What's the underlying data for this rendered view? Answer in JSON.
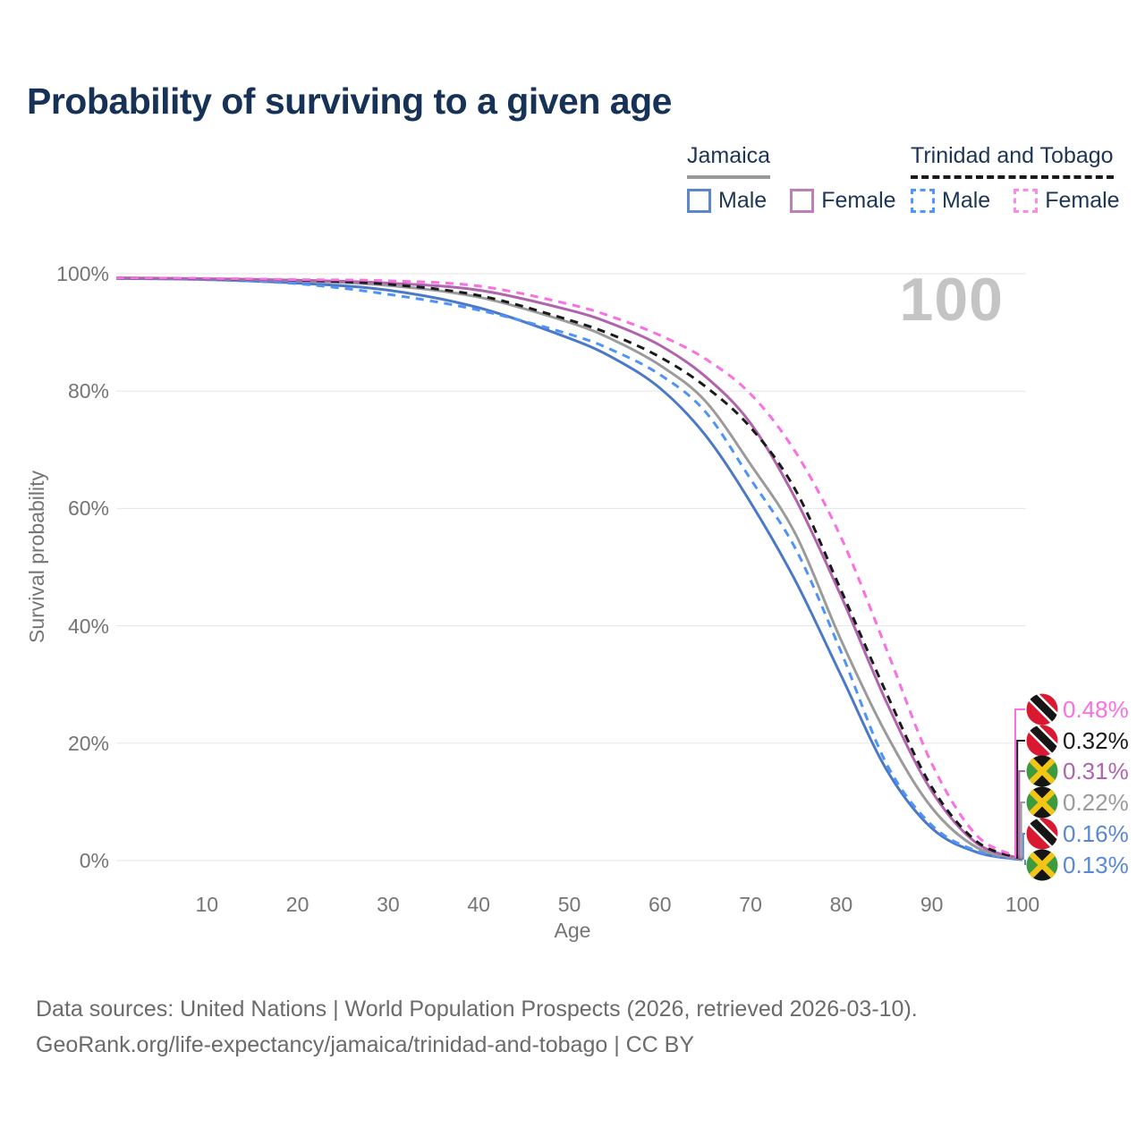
{
  "title": "Probability of surviving to a given age",
  "watermark": "100",
  "legend": {
    "groups": [
      {
        "name": "Jamaica",
        "underline_style": "solid",
        "underline_color": "#999999",
        "items": [
          {
            "label": "Male",
            "swatch_color": "#5b86c9",
            "dashed": false
          },
          {
            "label": "Female",
            "swatch_color": "#bd7fba",
            "dashed": false
          }
        ]
      },
      {
        "name": "Trinidad and Tobago",
        "underline_style": "dashed",
        "underline_color": "#1a1a1a",
        "items": [
          {
            "label": "Male",
            "swatch_color": "#4e96fc",
            "dashed": true
          },
          {
            "label": "Female",
            "swatch_color": "#fb8be8",
            "dashed": true
          }
        ]
      }
    ]
  },
  "chart_data": {
    "type": "line",
    "title": "Probability of surviving to a given age",
    "xlabel": "Age",
    "ylabel": "Survival probability",
    "xlim": [
      0,
      100
    ],
    "ylim": [
      0,
      100
    ],
    "x_ticks": [
      10,
      20,
      30,
      40,
      50,
      60,
      70,
      80,
      90,
      100
    ],
    "y_ticks": [
      "0%",
      "20%",
      "40%",
      "60%",
      "80%",
      "100%"
    ],
    "grid": "horizontal",
    "x": [
      0,
      10,
      20,
      30,
      40,
      50,
      55,
      60,
      65,
      70,
      75,
      80,
      85,
      90,
      95,
      100
    ],
    "series": [
      {
        "name": "Trinidad and Tobago — Female",
        "country": "Trinidad and Tobago",
        "sex": "Female",
        "color": "#fa6fe2",
        "label_color": "#fa6fe2",
        "dashed": true,
        "flag": "tt",
        "end_label": "0.48%",
        "values": [
          99.3,
          99.2,
          99.0,
          98.8,
          97.9,
          94.8,
          92.5,
          89.5,
          85.5,
          79.5,
          69.5,
          55.0,
          36.0,
          16.5,
          4.2,
          0.48
        ]
      },
      {
        "name": "Trinidad and Tobago — Both sexes",
        "country": "Trinidad and Tobago",
        "sex": "Both",
        "color": "#1a1a1a",
        "label_color": "#1a1a1a",
        "dashed": true,
        "flag": "tt",
        "end_label": "0.32%",
        "values": [
          99.3,
          99.15,
          98.9,
          98.2,
          96.3,
          92.1,
          89.4,
          85.8,
          80.8,
          73.8,
          63.0,
          46.0,
          28.5,
          12.5,
          3.2,
          0.32
        ]
      },
      {
        "name": "Jamaica — Female",
        "country": "Jamaica",
        "sex": "Female",
        "color": "#af64ad",
        "label_color": "#af64ad",
        "dashed": false,
        "flag": "jm",
        "end_label": "0.31%",
        "values": [
          99.3,
          99.15,
          98.9,
          98.4,
          97.2,
          93.8,
          91.3,
          87.8,
          82.5,
          74.5,
          61.5,
          45.0,
          27.0,
          11.8,
          2.9,
          0.31
        ]
      },
      {
        "name": "Jamaica — Both sexes",
        "country": "Jamaica",
        "sex": "Both",
        "color": "#9b9b9b",
        "label_color": "#9b9b9b",
        "dashed": false,
        "flag": "jm",
        "end_label": "0.22%",
        "values": [
          99.3,
          99.1,
          98.8,
          98.0,
          96.0,
          91.7,
          88.6,
          84.4,
          78.3,
          67.5,
          55.5,
          37.5,
          21.5,
          9.0,
          2.2,
          0.22
        ]
      },
      {
        "name": "Trinidad and Tobago — Male",
        "country": "Trinidad and Tobago",
        "sex": "Male",
        "color": "#4e93fa",
        "label_color": "#5788d8",
        "dashed": true,
        "flag": "tt",
        "end_label": "0.16%",
        "values": [
          99.2,
          99.0,
          98.3,
          96.5,
          93.8,
          89.7,
          86.8,
          82.8,
          76.5,
          65.0,
          53.0,
          35.5,
          16.5,
          6.0,
          1.6,
          0.16
        ]
      },
      {
        "name": "Jamaica — Male",
        "country": "Jamaica",
        "sex": "Male",
        "color": "#4b79c8",
        "label_color": "#5788d8",
        "dashed": false,
        "flag": "jm",
        "end_label": "0.13%",
        "values": [
          99.2,
          99.0,
          98.4,
          97.2,
          94.2,
          89.0,
          85.5,
          80.5,
          72.5,
          61.0,
          47.5,
          31.5,
          15.5,
          5.5,
          1.4,
          0.13
        ]
      }
    ],
    "flag_colors": {
      "jamaica_green": "#3e9a3f",
      "jamaica_gold": "#f3c514",
      "jamaica_black": "#151515",
      "tt_red": "#d81931",
      "tt_white": "#ffffff",
      "tt_black": "#151515"
    },
    "gridline_color": "#e5e5e5"
  },
  "footer": {
    "line1": "Data sources: United Nations | World Population Prospects (2026, retrieved 2026-03-10).",
    "line2": "GeoRank.org/life-expectancy/jamaica/trinidad-and-tobago | CC BY"
  }
}
